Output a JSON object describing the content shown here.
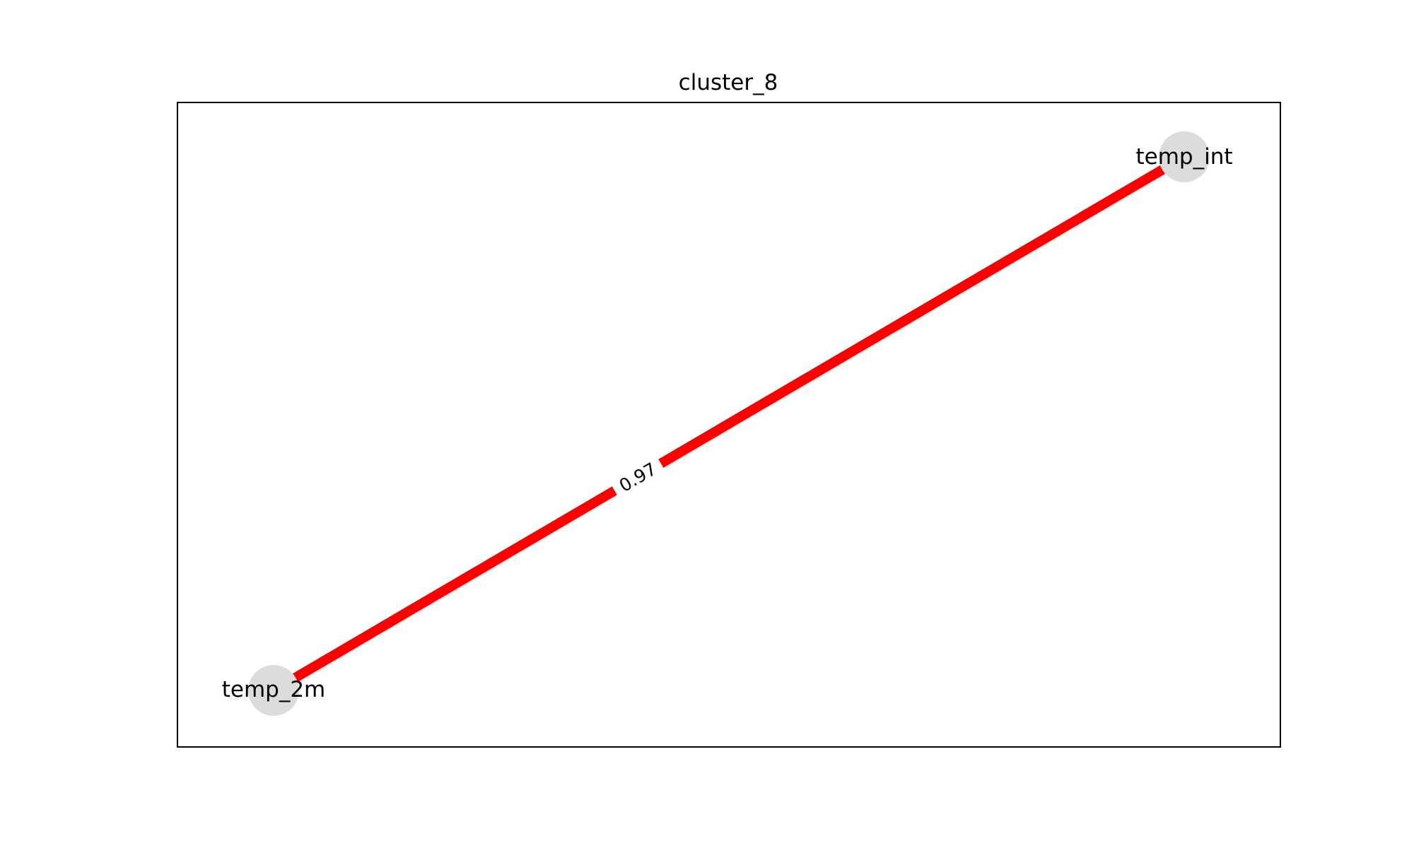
{
  "diagram": {
    "title": "cluster_8",
    "nodes": [
      {
        "id": "temp_int",
        "label": "temp_int"
      },
      {
        "id": "temp_2m",
        "label": "temp_2m"
      }
    ],
    "edges": [
      {
        "source": "temp_2m",
        "target": "temp_int",
        "weight_label": "0.97"
      }
    ],
    "colors": {
      "edge": "#ff0000",
      "node": "#dcdcdc",
      "frame": "#000000",
      "text": "#000000",
      "background": "#ffffff"
    }
  }
}
